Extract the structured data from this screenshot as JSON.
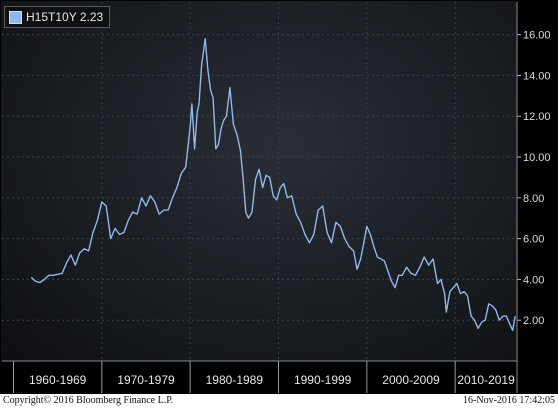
{
  "chart_data": {
    "type": "line",
    "title": "",
    "xlabel": "",
    "ylabel": "",
    "xlim": [
      1958.7,
      2017.0
    ],
    "ylim": [
      0,
      17.6
    ],
    "y_ticks": [
      2,
      4,
      6,
      8,
      10,
      12,
      14,
      16
    ],
    "y_tick_labels": [
      "2.00",
      "4.00",
      "6.00",
      "8.00",
      "10.00",
      "12.00",
      "14.00",
      "16.00"
    ],
    "x_categories": [
      "1960-1969",
      "1970-1979",
      "1980-1989",
      "1990-1999",
      "2000-2009",
      "2010-2019"
    ],
    "x_category_bounds": [
      [
        1960,
        1970
      ],
      [
        1970,
        1980
      ],
      [
        1980,
        1990
      ],
      [
        1990,
        2000
      ],
      [
        2000,
        2010
      ],
      [
        2010,
        2017
      ]
    ],
    "grid": true,
    "legend": "top-left",
    "series": [
      {
        "name": "H15T10Y",
        "last_value": "2.23",
        "color": "#8fb8ec",
        "x": [
          1962.0,
          1962.5,
          1963.0,
          1963.5,
          1964.0,
          1964.5,
          1965.0,
          1965.5,
          1966.0,
          1966.5,
          1967.0,
          1967.5,
          1968.0,
          1968.5,
          1969.0,
          1969.5,
          1970.0,
          1970.5,
          1971.0,
          1971.5,
          1972.0,
          1972.5,
          1973.0,
          1973.5,
          1974.0,
          1974.5,
          1975.0,
          1975.5,
          1976.0,
          1976.5,
          1977.0,
          1977.5,
          1978.0,
          1978.5,
          1979.0,
          1979.5,
          1980.0,
          1980.2,
          1980.5,
          1980.8,
          1981.0,
          1981.3,
          1981.7,
          1982.0,
          1982.3,
          1982.6,
          1982.9,
          1983.2,
          1983.5,
          1983.8,
          1984.1,
          1984.5,
          1984.9,
          1985.3,
          1985.7,
          1986.0,
          1986.3,
          1986.6,
          1987.0,
          1987.4,
          1987.8,
          1988.2,
          1988.6,
          1989.0,
          1989.4,
          1989.8,
          1990.2,
          1990.6,
          1991.0,
          1991.5,
          1992.0,
          1992.5,
          1993.0,
          1993.5,
          1994.0,
          1994.5,
          1995.0,
          1995.5,
          1996.0,
          1996.5,
          1997.0,
          1997.5,
          1998.0,
          1998.5,
          1998.9,
          1999.3,
          1999.7,
          2000.0,
          2000.4,
          2000.8,
          2001.2,
          2001.6,
          2002.0,
          2002.4,
          2002.8,
          2003.2,
          2003.6,
          2004.0,
          2004.5,
          2005.0,
          2005.5,
          2006.0,
          2006.5,
          2007.0,
          2007.5,
          2008.0,
          2008.4,
          2008.8,
          2009.0,
          2009.4,
          2009.8,
          2010.2,
          2010.6,
          2011.0,
          2011.4,
          2011.8,
          2012.2,
          2012.6,
          2013.0,
          2013.4,
          2013.8,
          2014.2,
          2014.6,
          2015.0,
          2015.4,
          2015.8,
          2016.2,
          2016.5,
          2016.8
        ],
        "y": [
          4.1,
          3.9,
          3.85,
          4.0,
          4.2,
          4.2,
          4.25,
          4.3,
          4.8,
          5.2,
          4.7,
          5.3,
          5.5,
          5.4,
          6.3,
          6.9,
          7.8,
          7.6,
          6.0,
          6.5,
          6.2,
          6.3,
          6.9,
          7.3,
          7.2,
          8.0,
          7.6,
          8.1,
          7.8,
          7.2,
          7.4,
          7.4,
          8.0,
          8.5,
          9.2,
          9.5,
          11.5,
          12.6,
          10.4,
          12.2,
          12.6,
          14.5,
          15.8,
          14.3,
          13.3,
          12.9,
          10.4,
          10.6,
          11.4,
          11.8,
          12.0,
          13.4,
          11.6,
          11.1,
          10.3,
          8.9,
          7.3,
          7.0,
          7.3,
          8.9,
          9.4,
          8.5,
          9.1,
          9.0,
          8.1,
          7.9,
          8.5,
          8.7,
          8.0,
          8.1,
          7.2,
          6.8,
          6.2,
          5.8,
          6.2,
          7.4,
          7.6,
          6.3,
          5.8,
          6.8,
          6.6,
          6.0,
          5.6,
          5.4,
          4.5,
          5.0,
          5.9,
          6.6,
          6.2,
          5.6,
          5.1,
          5.0,
          4.9,
          4.4,
          3.9,
          3.6,
          4.2,
          4.2,
          4.6,
          4.3,
          4.2,
          4.6,
          5.1,
          4.7,
          5.0,
          3.8,
          4.0,
          3.3,
          2.4,
          3.4,
          3.6,
          3.8,
          3.3,
          3.4,
          3.2,
          2.2,
          2.0,
          1.6,
          1.9,
          2.0,
          2.8,
          2.7,
          2.5,
          2.0,
          2.2,
          2.2,
          1.8,
          1.5,
          2.2
        ]
      }
    ]
  },
  "legend": {
    "label": "H15T10Y",
    "value": "2.23"
  },
  "footer": {
    "copyright": "Copyright© 2016 Bloomberg Finance L.P.",
    "timestamp": "16-Nov-2016 17:42:05"
  }
}
